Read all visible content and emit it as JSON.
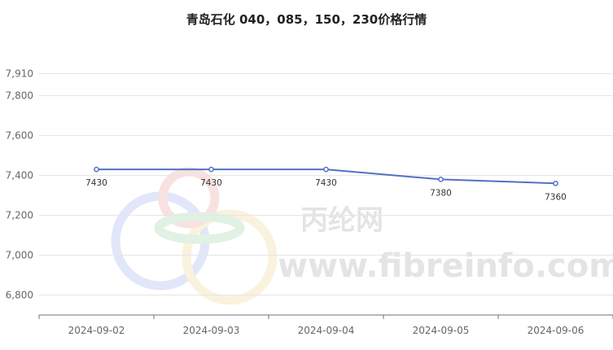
{
  "chart_data": {
    "type": "line",
    "title": "青岛石化 040，085，150，230价格行情",
    "xlabel": "",
    "ylabel": "",
    "categories": [
      "2024-09-02",
      "2024-09-03",
      "2024-09-04",
      "2024-09-05",
      "2024-09-06"
    ],
    "series": [
      {
        "values": [
          7430,
          7430,
          7430,
          7380,
          7360
        ]
      }
    ],
    "data_labels": [
      "7430",
      "7430",
      "7430",
      "7380",
      "7360"
    ],
    "y_ticks": [
      6800,
      7000,
      7200,
      7400,
      7600,
      7800,
      7910
    ],
    "y_tick_labels": [
      "6,800",
      "7,000",
      "7,200",
      "7,400",
      "7,600",
      "7,800",
      "7,910"
    ],
    "ylim": [
      6700,
      7910
    ],
    "grid": true,
    "line_color": "#5470c6"
  },
  "watermark": {
    "line1": "丙纶网",
    "line2": "www.fibreinfo.com"
  }
}
